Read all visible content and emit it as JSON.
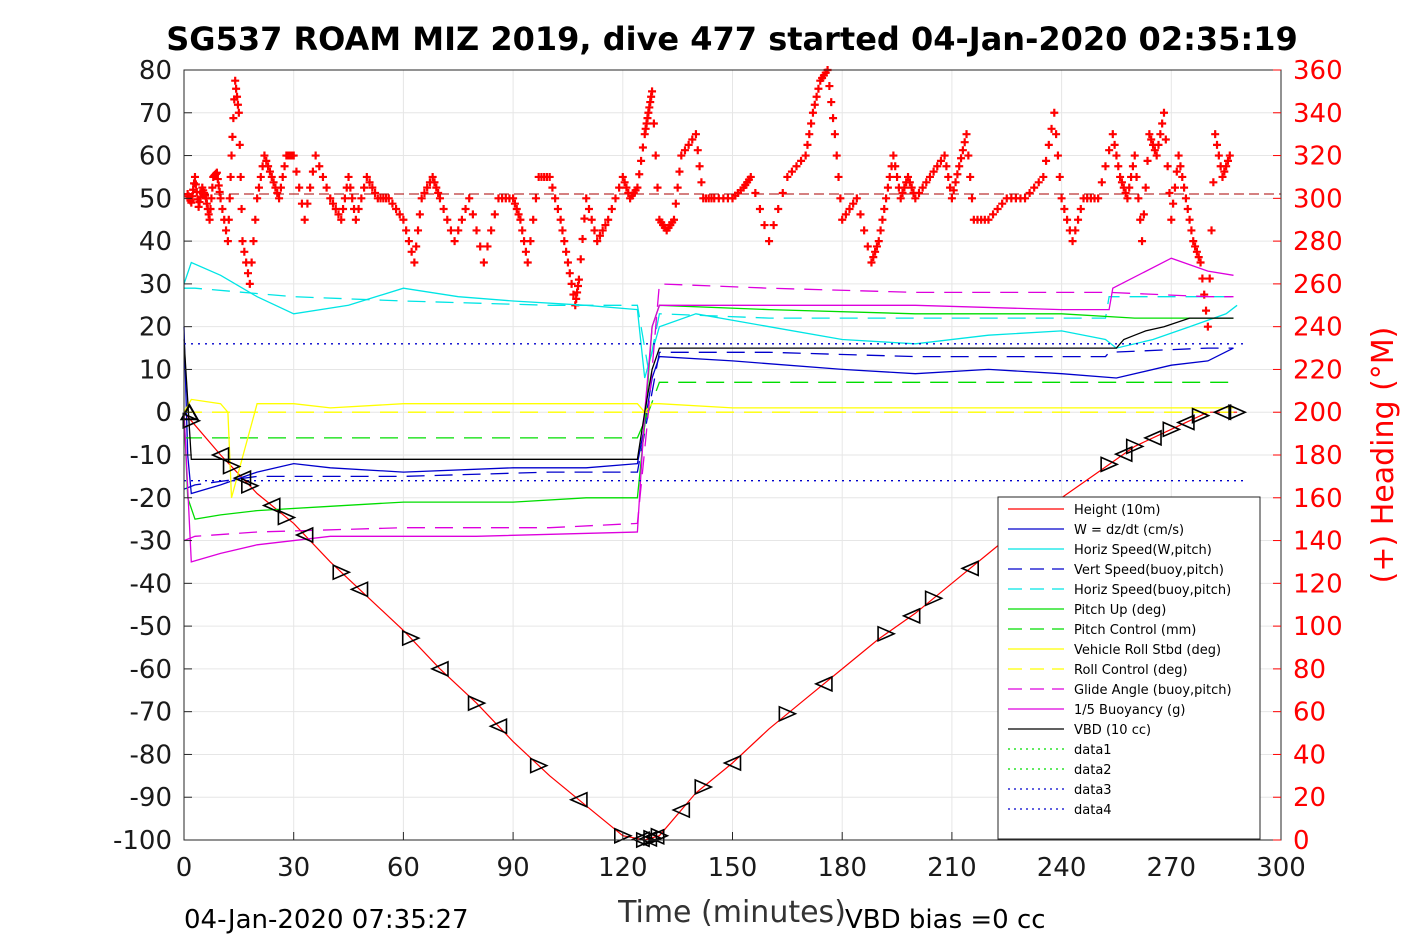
{
  "chart_data": {
    "type": "line",
    "title": "SG537 ROAM MIZ 2019, dive 477 started 04-Jan-2020 02:35:19",
    "xlabel": "Time (minutes)",
    "ylabel_right": "(+) Heading (°M)",
    "xlim": [
      0,
      300
    ],
    "ylim": [
      -100,
      80
    ],
    "ylim_right": [
      0,
      360
    ],
    "x_ticks": [
      "0",
      "30",
      "60",
      "90",
      "120",
      "150",
      "180",
      "210",
      "240",
      "270",
      "300"
    ],
    "y_ticks": [
      "80",
      "70",
      "60",
      "50",
      "40",
      "30",
      "20",
      "10",
      "0",
      "-10",
      "-20",
      "-30",
      "-40",
      "-50",
      "-60",
      "-70",
      "-80",
      "-90",
      "-100"
    ],
    "y_ticks_right": [
      "360",
      "340",
      "320",
      "300",
      "280",
      "260",
      "240",
      "220",
      "200",
      "180",
      "160",
      "140",
      "120",
      "100",
      "80",
      "60",
      "40",
      "20",
      "0"
    ],
    "grid": true,
    "legend_position": "bottom-right",
    "footer_left": "04-Jan-2020 07:35:27",
    "footer_right": "VBD bias =0 cc",
    "series": [
      {
        "name": "Height (10m)",
        "color": "#ff0000",
        "style": "solid",
        "x": [
          0,
          2,
          10,
          20,
          30,
          40,
          50,
          60,
          70,
          80,
          90,
          100,
          110,
          120,
          126,
          130,
          140,
          150,
          160,
          170,
          180,
          190,
          200,
          210,
          220,
          230,
          240,
          250,
          260,
          270,
          280,
          288
        ],
        "y": [
          0,
          -2,
          -10,
          -19,
          -26,
          -35,
          -43,
          -51,
          -60,
          -68,
          -77,
          -85,
          -92,
          -99,
          -100,
          -99,
          -89,
          -82,
          -74,
          -67,
          -60,
          -53,
          -47,
          -40,
          -33,
          -26,
          -20,
          -14,
          -8,
          -4,
          0,
          0
        ]
      },
      {
        "name": "W = dz/dt (cm/s)",
        "color": "#0000cc",
        "style": "solid",
        "x": [
          0,
          1,
          2,
          10,
          20,
          30,
          40,
          60,
          90,
          110,
          124,
          126,
          128,
          130,
          150,
          180,
          200,
          220,
          240,
          255,
          270,
          280,
          287
        ],
        "y": [
          20,
          -10,
          -19,
          -17,
          -14,
          -12,
          -13,
          -14,
          -13,
          -13,
          -12,
          -3,
          8,
          13,
          12,
          10,
          9,
          10,
          9,
          8,
          11,
          12,
          15
        ]
      },
      {
        "name": "Horiz Speed(W,pitch)",
        "color": "#00e5e5",
        "style": "solid",
        "x": [
          0,
          2,
          10,
          20,
          30,
          45,
          60,
          75,
          90,
          110,
          124,
          126,
          130,
          140,
          160,
          180,
          200,
          220,
          240,
          252,
          255,
          265,
          275,
          285,
          288
        ],
        "y": [
          30,
          35,
          32,
          27,
          23,
          25,
          29,
          27,
          26,
          25,
          24,
          8,
          20,
          23,
          20,
          17,
          16,
          18,
          19,
          17,
          15,
          17,
          20,
          23,
          25
        ]
      },
      {
        "name": "Vert Speed(buoy,pitch)",
        "color": "#0000cc",
        "style": "dashed",
        "x": [
          0,
          3,
          20,
          60,
          100,
          124,
          127,
          130,
          160,
          200,
          240,
          252,
          253,
          280,
          287
        ],
        "y": [
          -18,
          -17,
          -15,
          -15,
          -14,
          -14,
          0,
          14,
          14,
          13,
          13,
          13,
          14,
          15,
          15
        ]
      },
      {
        "name": "Horiz Speed(buoy,pitch)",
        "color": "#00e5e5",
        "style": "dashed",
        "x": [
          0,
          3,
          30,
          60,
          100,
          124,
          127,
          130,
          160,
          200,
          240,
          252,
          253,
          280,
          287
        ],
        "y": [
          29,
          29,
          27,
          26,
          25,
          25,
          10,
          23,
          22,
          22,
          22,
          22,
          27,
          27,
          27
        ]
      },
      {
        "name": "Pitch Up (deg)",
        "color": "#00dd00",
        "style": "solid",
        "x": [
          0,
          1,
          3,
          10,
          20,
          40,
          60,
          90,
          110,
          124,
          126,
          128,
          130,
          160,
          200,
          240,
          260,
          280,
          287
        ],
        "y": [
          0,
          -20,
          -25,
          -24,
          -23,
          -22,
          -21,
          -21,
          -20,
          -20,
          -3,
          20,
          25,
          24,
          23,
          23,
          22,
          22,
          22
        ]
      },
      {
        "name": "Pitch Control (mm)",
        "color": "#00dd00",
        "style": "dashed",
        "x": [
          0,
          3,
          124,
          127,
          130,
          287
        ],
        "y": [
          -6,
          -6,
          -6,
          0,
          7,
          7
        ]
      },
      {
        "name": "Vehicle Roll Stbd (deg)",
        "color": "#ffff00",
        "style": "solid",
        "x": [
          0,
          2,
          10,
          12,
          13,
          20,
          30,
          40,
          60,
          80,
          100,
          124,
          126,
          128,
          130,
          150,
          170,
          190,
          210,
          230,
          250,
          270,
          287
        ],
        "y": [
          0,
          3,
          2,
          0,
          -20,
          2,
          2,
          1,
          2,
          2,
          2,
          2,
          0,
          2,
          2,
          1,
          1,
          1,
          1,
          1,
          1,
          1,
          1
        ]
      },
      {
        "name": "Roll Control (deg)",
        "color": "#ffff00",
        "style": "dashed",
        "x": [
          0,
          287
        ],
        "y": [
          0,
          0
        ]
      },
      {
        "name": "Glide Angle (buoy,pitch)",
        "color": "#dd00dd",
        "style": "dashed",
        "x": [
          0,
          3,
          20,
          60,
          100,
          124,
          127,
          130,
          160,
          200,
          240,
          252,
          253,
          280,
          287
        ],
        "y": [
          -30,
          -29,
          -28,
          -27,
          -27,
          -26,
          0,
          30,
          29,
          28,
          28,
          28,
          28,
          27,
          27
        ]
      },
      {
        "name": "1/5 Buoyancy (g)",
        "color": "#dd00dd",
        "style": "solid",
        "x": [
          0,
          2,
          10,
          20,
          40,
          80,
          124,
          126,
          128,
          130,
          160,
          200,
          240,
          253,
          254,
          270,
          280,
          287
        ],
        "y": [
          0,
          -35,
          -33,
          -31,
          -29,
          -29,
          -28,
          0,
          20,
          25,
          25,
          25,
          24,
          24,
          29,
          36,
          33,
          32
        ]
      },
      {
        "name": "VBD (10 cc)",
        "color": "#000000",
        "style": "solid",
        "x": [
          0,
          2,
          124,
          126,
          128,
          130,
          200,
          255,
          257,
          260,
          263,
          268,
          275,
          287
        ],
        "y": [
          17,
          -11,
          -11,
          0,
          10,
          15,
          15,
          15,
          17,
          18,
          19,
          20,
          22,
          22
        ]
      },
      {
        "name": "data1",
        "color": "#00dd00",
        "style": "dotted",
        "x": [],
        "y": []
      },
      {
        "name": "data2",
        "color": "#00dd00",
        "style": "dotted",
        "x": [],
        "y": []
      },
      {
        "name": "data3",
        "color": "#0000cc",
        "style": "dotted",
        "x": [
          0,
          290
        ],
        "y": [
          16,
          16
        ]
      },
      {
        "name": "data4",
        "color": "#0000cc",
        "style": "dotted",
        "x": [
          0,
          290
        ],
        "y": [
          -16,
          -16
        ]
      }
    ],
    "heading_series": {
      "color": "#ff0000",
      "marker": "+",
      "axis": "right",
      "reference_line": 302,
      "x": [
        1,
        2,
        3,
        4,
        5,
        6,
        7,
        8,
        9,
        10,
        12,
        13,
        14,
        15,
        16,
        18,
        20,
        22,
        24,
        26,
        28,
        30,
        33,
        36,
        40,
        43,
        45,
        47,
        50,
        53,
        56,
        60,
        63,
        65,
        68,
        70,
        74,
        78,
        82,
        86,
        90,
        92,
        94,
        97,
        100,
        103,
        105,
        107,
        108,
        110,
        113,
        116,
        120,
        122,
        124,
        126,
        127,
        128,
        130,
        132,
        134,
        136,
        140,
        142,
        145,
        150,
        153,
        155,
        160,
        165,
        170,
        172,
        174,
        176,
        178,
        180,
        184,
        188,
        190,
        192,
        194,
        196,
        198,
        200,
        204,
        208,
        210,
        212,
        214,
        216,
        220,
        225,
        230,
        235,
        238,
        240,
        243,
        246,
        250,
        254,
        256,
        258,
        260,
        262,
        264,
        266,
        268,
        270,
        272,
        274,
        276,
        278,
        280,
        282,
        284,
        286
      ],
      "y": [
        302,
        298,
        310,
        296,
        305,
        300,
        290,
        310,
        312,
        300,
        280,
        320,
        355,
        340,
        280,
        260,
        300,
        320,
        310,
        300,
        320,
        320,
        290,
        320,
        300,
        290,
        310,
        290,
        310,
        300,
        300,
        290,
        270,
        300,
        310,
        300,
        280,
        300,
        270,
        300,
        300,
        290,
        270,
        310,
        310,
        290,
        270,
        250,
        262,
        300,
        280,
        290,
        310,
        300,
        305,
        330,
        340,
        350,
        290,
        285,
        290,
        320,
        330,
        300,
        300,
        300,
        305,
        310,
        280,
        310,
        320,
        340,
        355,
        360,
        330,
        290,
        300,
        270,
        280,
        300,
        320,
        300,
        310,
        300,
        310,
        320,
        300,
        315,
        330,
        290,
        290,
        300,
        300,
        310,
        340,
        300,
        280,
        300,
        300,
        330,
        310,
        300,
        320,
        280,
        330,
        320,
        340,
        290,
        320,
        300,
        280,
        270,
        240,
        330,
        310,
        320
      ]
    }
  }
}
